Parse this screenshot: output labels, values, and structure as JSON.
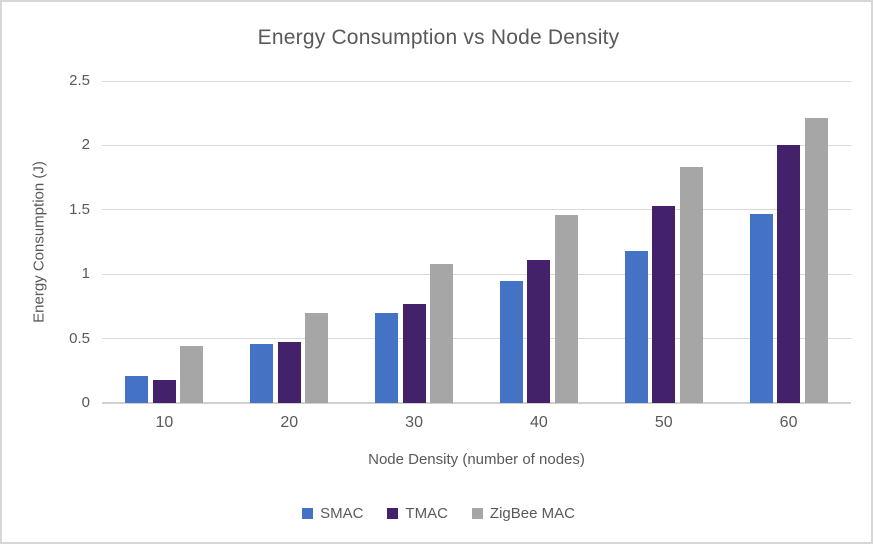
{
  "chart_data": {
    "type": "bar",
    "title": "Energy Consumption vs Node Density",
    "xlabel": "Node Density (number of nodes)",
    "ylabel": "Energy Consumption (J)",
    "categories": [
      "10",
      "20",
      "30",
      "40",
      "50",
      "60"
    ],
    "series": [
      {
        "name": "SMAC",
        "color": "#4472C4",
        "values": [
          0.21,
          0.46,
          0.7,
          0.95,
          1.18,
          1.47
        ]
      },
      {
        "name": "TMAC",
        "color": "#44216B",
        "values": [
          0.18,
          0.47,
          0.77,
          1.11,
          1.53,
          2.0
        ]
      },
      {
        "name": "ZigBee MAC",
        "color": "#A6A6A6",
        "values": [
          0.44,
          0.7,
          1.08,
          1.46,
          1.83,
          2.21
        ]
      }
    ],
    "ylim": [
      0,
      2.5
    ],
    "y_ticks": [
      0,
      0.5,
      1,
      1.5,
      2,
      2.5
    ],
    "y_tick_labels": [
      "0",
      "0.5",
      "1",
      "1.5",
      "2",
      "2.5"
    ],
    "grid": true,
    "legend_position": "bottom",
    "colors": {
      "text": "#595959",
      "gridline": "#D9D9D9",
      "axis_line": "#D0D0D0",
      "border": "#D7D7D7",
      "background": "#FFFFFF"
    }
  }
}
